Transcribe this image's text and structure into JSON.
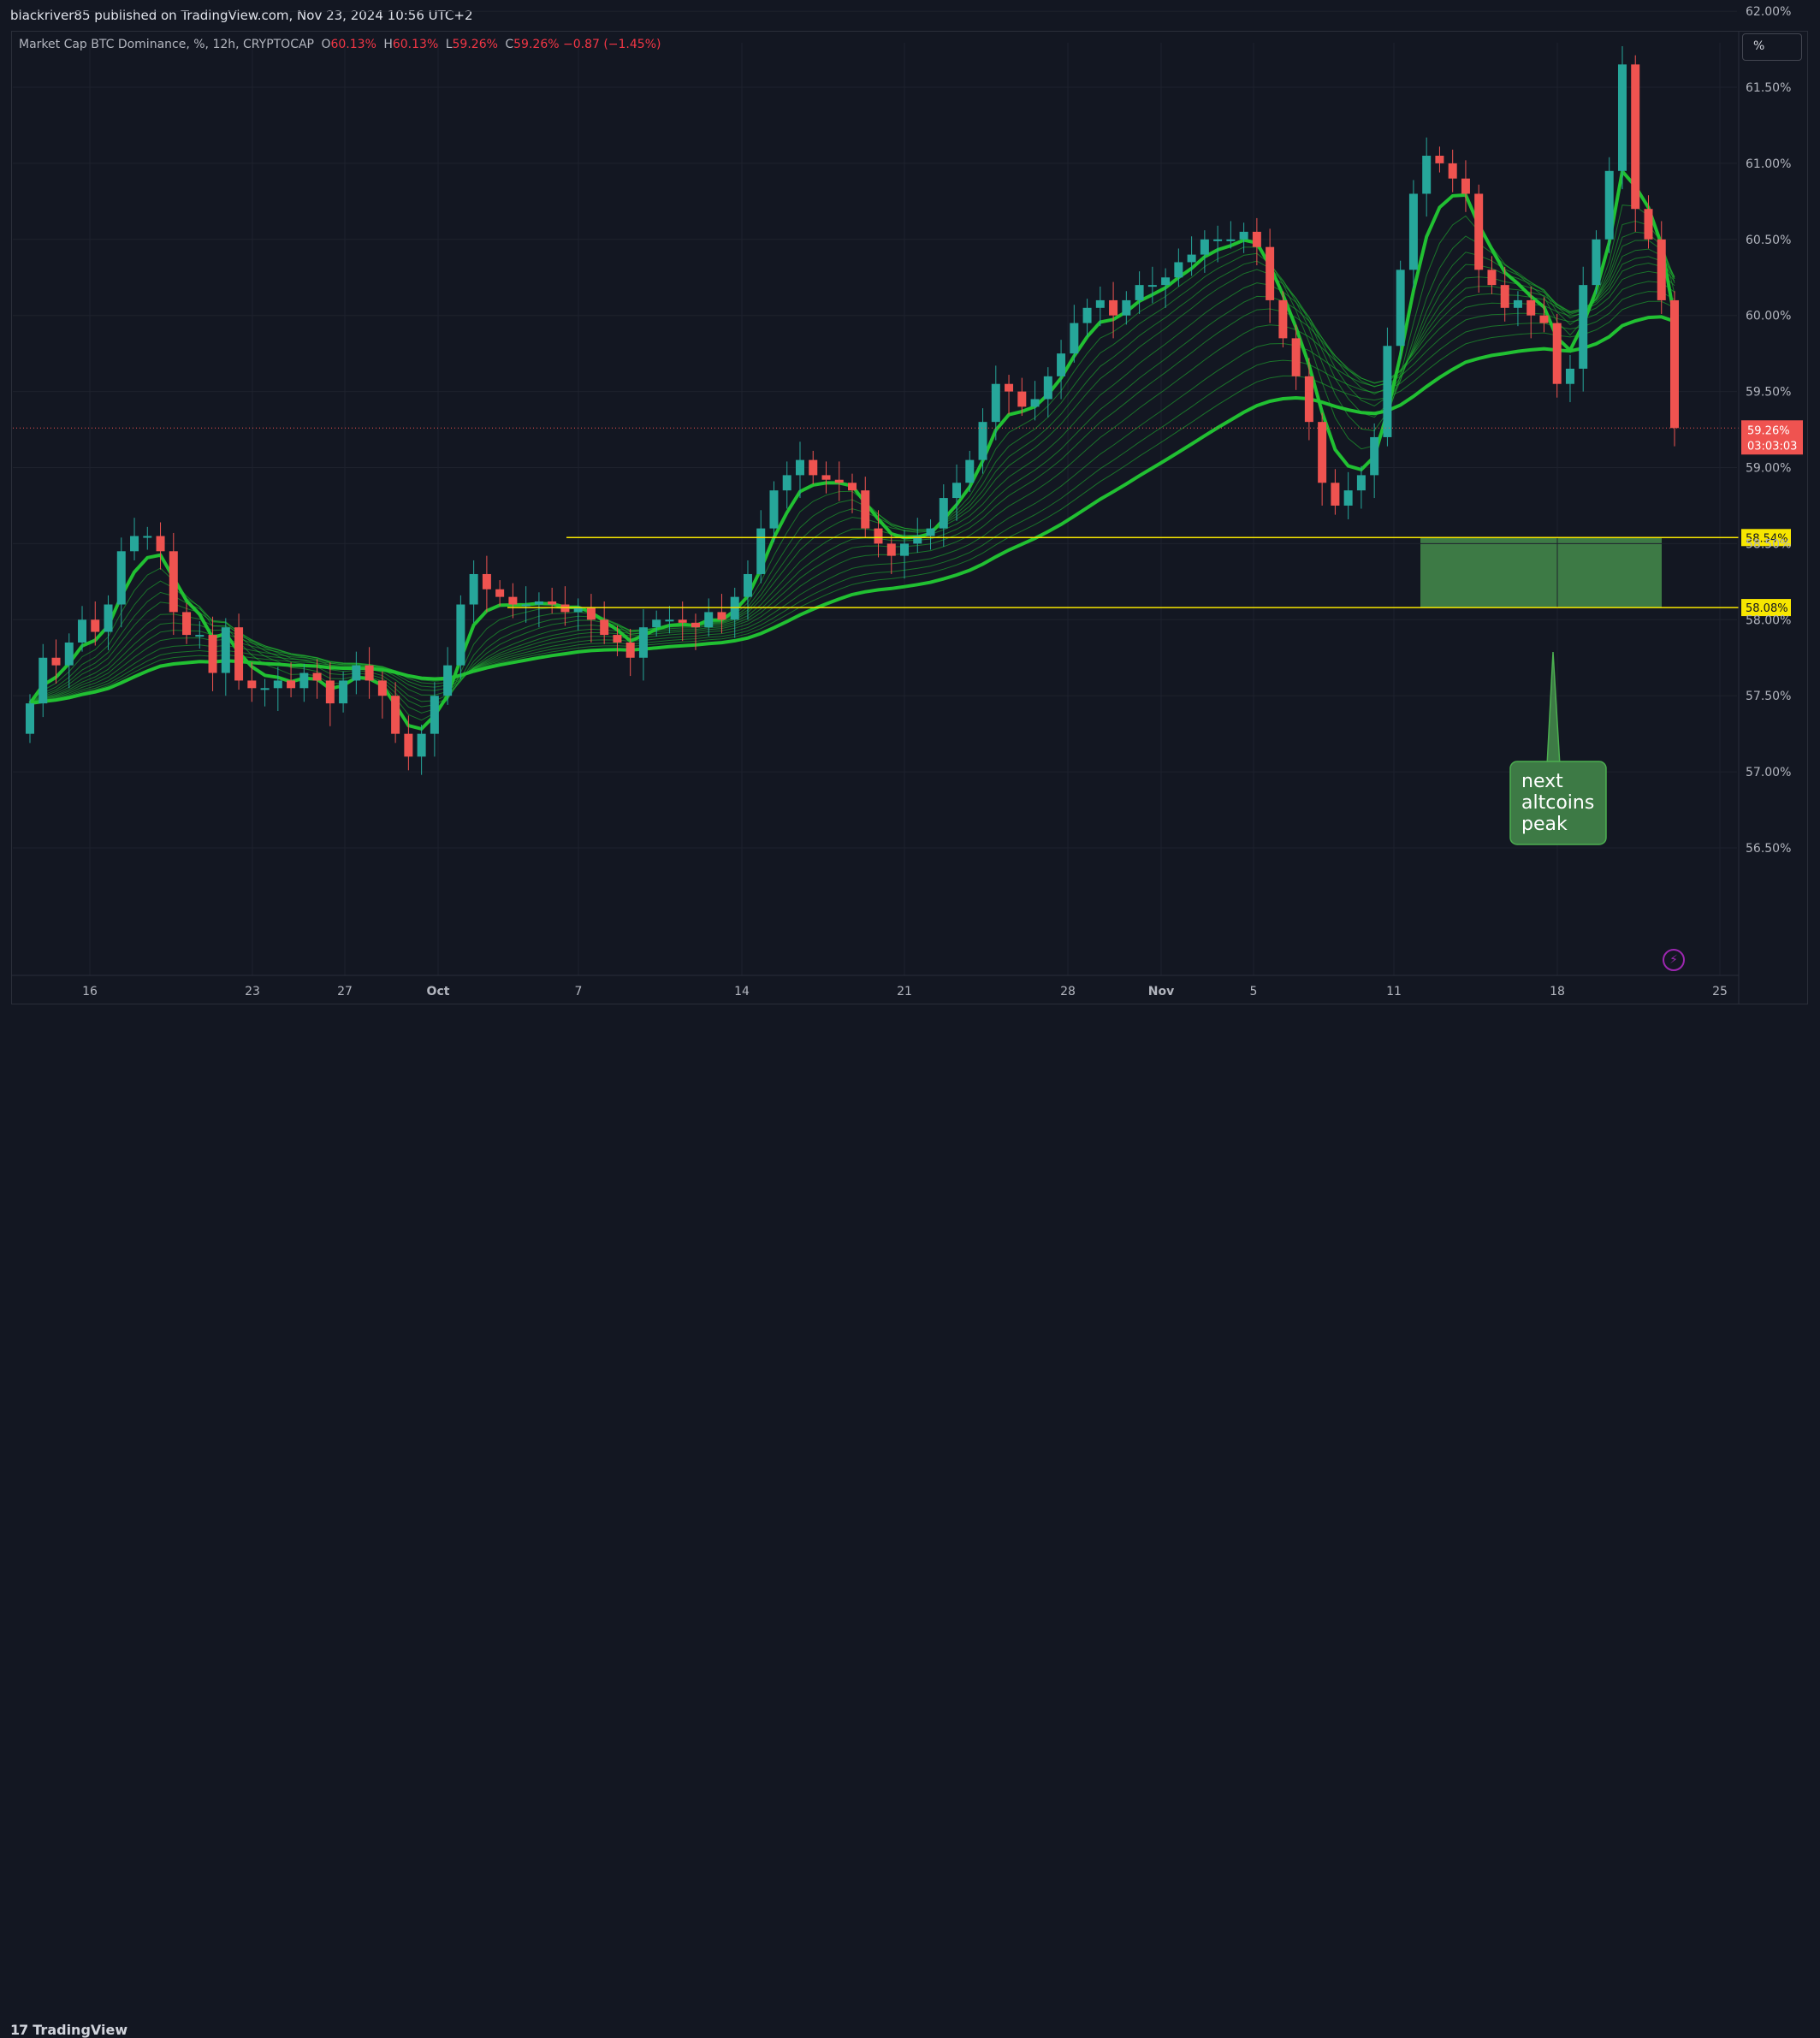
{
  "header": {
    "published": "blackriver85 published on TradingView.com, Nov 23, 2024 10:56 UTC+2"
  },
  "legend": {
    "symbol": "Market Cap BTC Dominance, %, 12h, CRYPTOCAP",
    "o_label": "O",
    "o_val": "60.13%",
    "h_label": "H",
    "h_val": "60.13%",
    "l_label": "L",
    "l_val": "59.26%",
    "c_label": "C",
    "c_val": "59.26%",
    "change": "−0.87 (−1.45%)"
  },
  "scale_button": "%",
  "footer": {
    "brand": "TradingView",
    "logo_mark": "17"
  },
  "annotation": {
    "lines": [
      "next",
      "altcoins",
      "peak"
    ]
  },
  "price_tag": {
    "value": "59.26%",
    "countdown": "03:03:03"
  },
  "levels": [
    {
      "value": 58.54,
      "label": "58.54%"
    },
    {
      "value": 58.08,
      "label": "58.08%"
    }
  ],
  "colors": {
    "up": "#26a69a",
    "down": "#ef5350",
    "ema": "#21c032",
    "level": "#f7e600",
    "zone": "#3d7a45",
    "price_tag": "#ef5350"
  },
  "chart_data": {
    "type": "candlestick",
    "title": "Market Cap BTC Dominance, %, 12h, CRYPTOCAP",
    "y_unit": "%",
    "ylim": [
      56.2,
      62.3
    ],
    "y_ticks": [
      "62.00%",
      "61.50%",
      "61.00%",
      "60.50%",
      "60.00%",
      "59.50%",
      "59.00%",
      "58.50%",
      "58.00%",
      "57.50%",
      "57.00%",
      "56.50%"
    ],
    "x_ticks": [
      "16",
      "23",
      "27",
      "Oct",
      "7",
      "14",
      "21",
      "28",
      "Nov",
      "5",
      "11",
      "18",
      "25"
    ],
    "highlight_zone": {
      "from": 58.08,
      "to": 58.54
    },
    "closes": [
      57.45,
      57.75,
      57.7,
      57.85,
      58.0,
      57.92,
      58.1,
      58.45,
      58.55,
      58.55,
      58.45,
      58.05,
      57.9,
      57.9,
      57.65,
      57.95,
      57.6,
      57.55,
      57.55,
      57.6,
      57.55,
      57.65,
      57.6,
      57.45,
      57.6,
      57.7,
      57.6,
      57.5,
      57.25,
      57.1,
      57.25,
      57.5,
      57.7,
      58.1,
      58.3,
      58.2,
      58.15,
      58.1,
      58.1,
      58.12,
      58.1,
      58.05,
      58.08,
      58.0,
      57.9,
      57.85,
      57.75,
      57.95,
      58.0,
      58.0,
      57.98,
      57.95,
      58.05,
      58.0,
      58.15,
      58.3,
      58.6,
      58.85,
      58.95,
      59.05,
      58.95,
      58.92,
      58.9,
      58.85,
      58.6,
      58.5,
      58.42,
      58.5,
      58.55,
      58.6,
      58.8,
      58.9,
      59.05,
      59.3,
      59.55,
      59.5,
      59.4,
      59.45,
      59.6,
      59.75,
      59.95,
      60.05,
      60.1,
      60.0,
      60.1,
      60.2,
      60.2,
      60.25,
      60.35,
      60.4,
      60.5,
      60.5,
      60.5,
      60.55,
      60.45,
      60.1,
      59.85,
      59.6,
      59.3,
      58.9,
      58.75,
      58.85,
      58.95,
      59.2,
      59.8,
      60.3,
      60.8,
      61.05,
      61.0,
      60.9,
      60.8,
      60.3,
      60.2,
      60.05,
      60.1,
      60.0,
      59.95,
      59.55,
      59.65,
      60.2,
      60.5,
      60.95,
      61.65,
      60.7,
      60.5,
      60.1,
      59.26
    ]
  }
}
